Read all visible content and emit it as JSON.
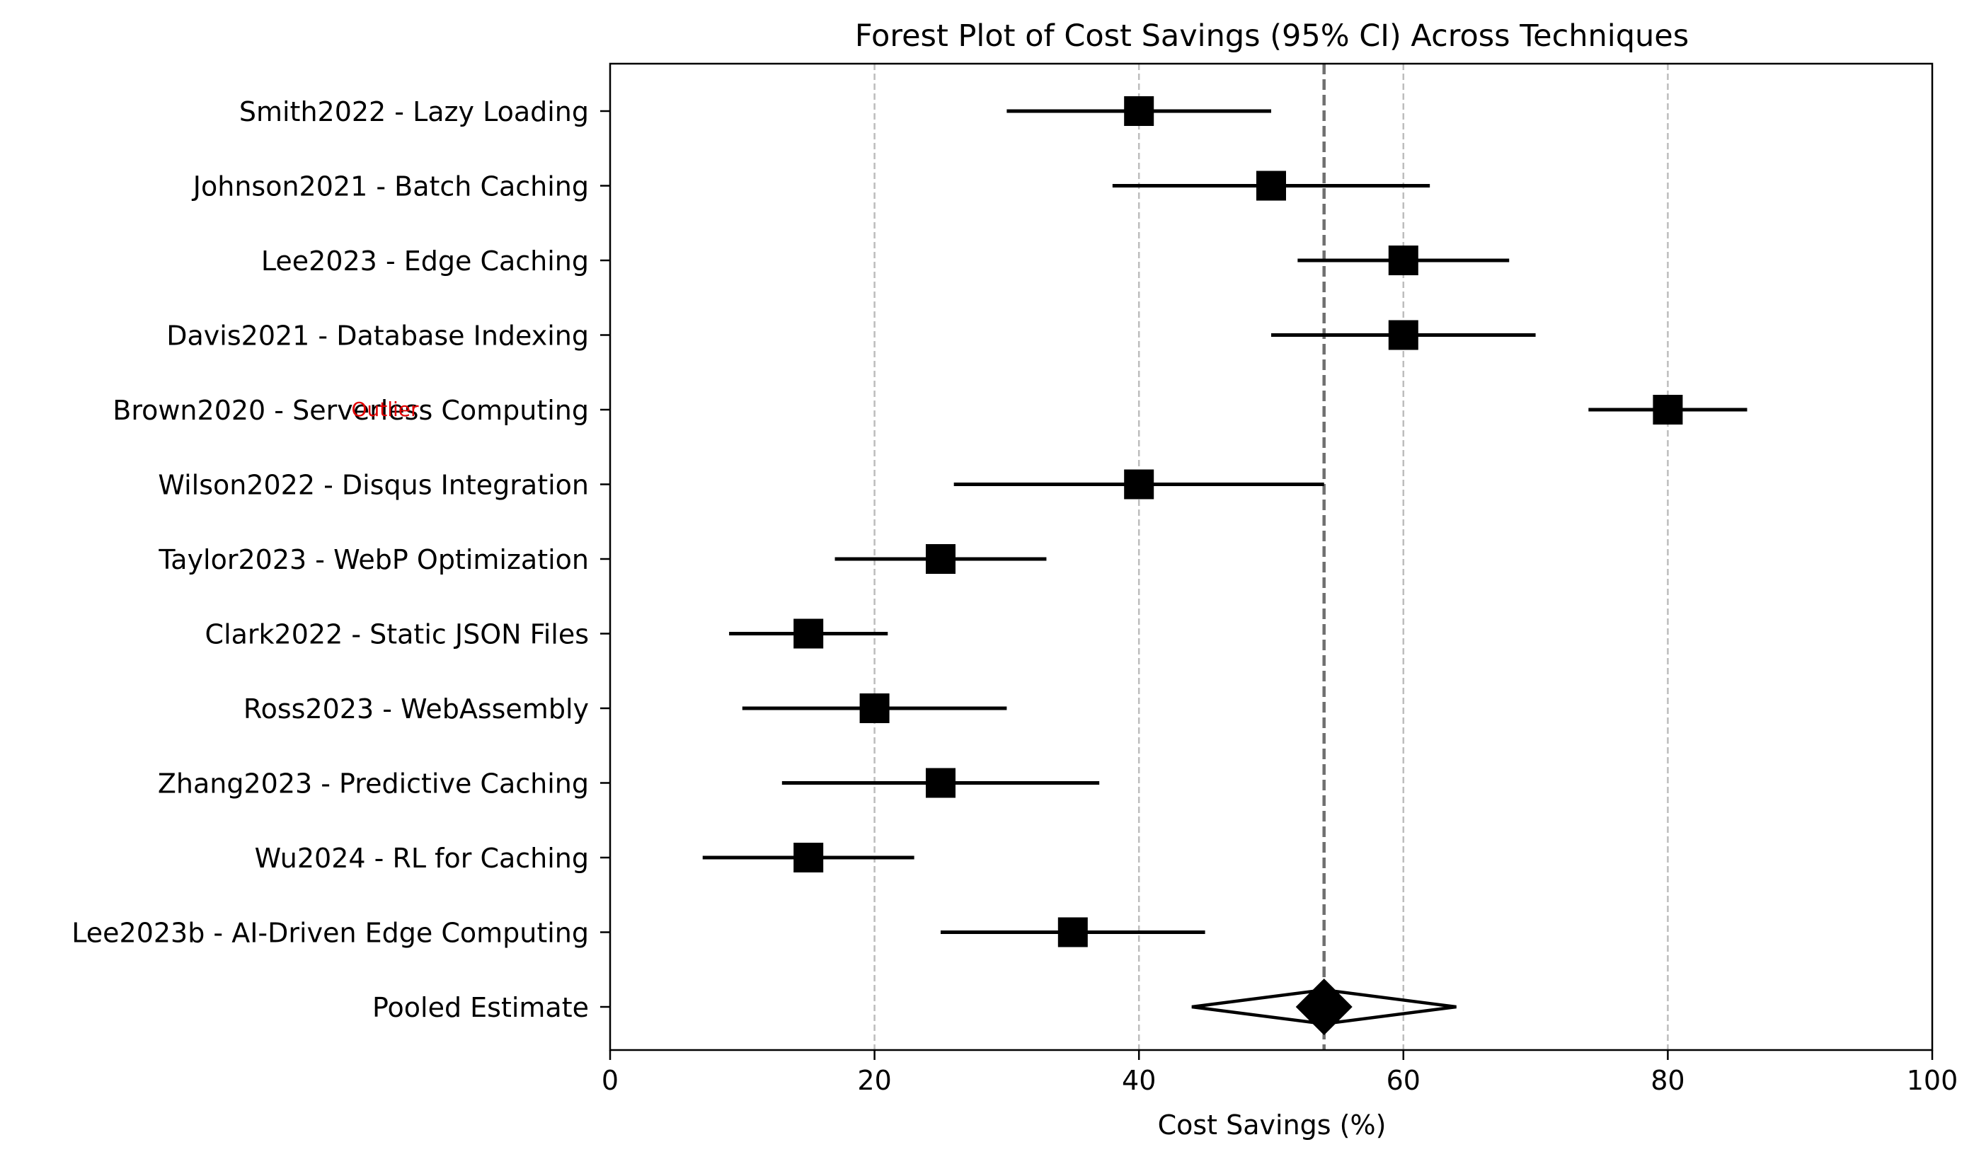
{
  "chart_data": {
    "type": "forest",
    "title": "Forest Plot of Cost Savings (95% CI) Across Techniques",
    "xlabel": "Cost Savings (%)",
    "ylabel": "",
    "xlim": [
      0,
      100
    ],
    "x_ticks": [
      0,
      20,
      40,
      60,
      80,
      100
    ],
    "grid": "vertical dashed lines at 20, 40, 60, 80",
    "legend": "none",
    "studies": [
      {
        "label": "Smith2022 - Lazy Loading",
        "estimate": 40,
        "ci_low": 30,
        "ci_high": 50
      },
      {
        "label": "Johnson2021 - Batch Caching",
        "estimate": 50,
        "ci_low": 38,
        "ci_high": 62
      },
      {
        "label": "Lee2023 - Edge Caching",
        "estimate": 60,
        "ci_low": 52,
        "ci_high": 68
      },
      {
        "label": "Davis2021 - Database Indexing",
        "estimate": 60,
        "ci_low": 50,
        "ci_high": 70
      },
      {
        "label": "Brown2020 - Serverless Computing",
        "estimate": 80,
        "ci_low": 74,
        "ci_high": 86
      },
      {
        "label": "Wilson2022 - Disqus Integration",
        "estimate": 40,
        "ci_low": 26,
        "ci_high": 54
      },
      {
        "label": "Taylor2023 - WebP Optimization",
        "estimate": 25,
        "ci_low": 17,
        "ci_high": 33
      },
      {
        "label": "Clark2022 - Static JSON Files",
        "estimate": 15,
        "ci_low": 9,
        "ci_high": 21
      },
      {
        "label": "Ross2023 - WebAssembly",
        "estimate": 20,
        "ci_low": 10,
        "ci_high": 30
      },
      {
        "label": "Zhang2023 - Predictive Caching",
        "estimate": 25,
        "ci_low": 13,
        "ci_high": 37
      },
      {
        "label": "Wu2024 - RL for Caching",
        "estimate": 15,
        "ci_low": 7,
        "ci_high": 23
      },
      {
        "label": "Lee2023b - AI-Driven Edge Computing",
        "estimate": 35,
        "ci_low": 25,
        "ci_high": 45
      }
    ],
    "pooled": {
      "label": "Pooled Estimate",
      "estimate": 54,
      "ci_low": 44,
      "ci_high": 64
    },
    "reference_line": 54,
    "annotations": [
      {
        "text": "Outlier",
        "study": "Brown2020 - Serverless Computing",
        "color": "#e00000"
      }
    ],
    "colors": {
      "marker": "#000000",
      "grid": "#bdbdbd",
      "reference_line": "#707070",
      "annotation": "#e00000"
    }
  }
}
